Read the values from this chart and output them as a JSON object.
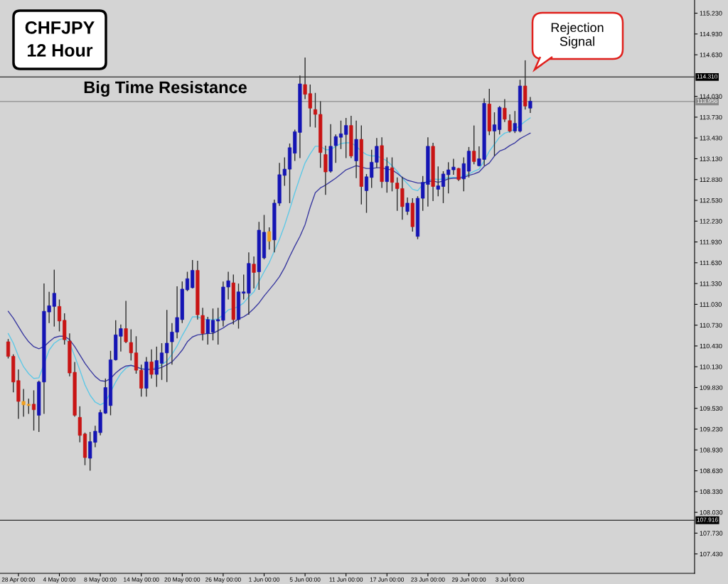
{
  "chart_data": {
    "type": "candlestick",
    "title": "CHFJPY",
    "subtitle": "12 Hour",
    "categories": [
      null,
      null,
      "28 Apr 00:00",
      null,
      null,
      null,
      null,
      null,
      null,
      null,
      "4 May 00:00",
      null,
      null,
      null,
      null,
      null,
      null,
      null,
      "8 May 00:00",
      null,
      null,
      null,
      null,
      null,
      null,
      null,
      "14 May 00:00",
      null,
      null,
      null,
      null,
      null,
      null,
      null,
      "20 May 00:00",
      null,
      null,
      null,
      null,
      null,
      null,
      null,
      "26 May 00:00",
      null,
      null,
      null,
      null,
      null,
      null,
      null,
      "1 Jun 00:00",
      null,
      null,
      null,
      null,
      null,
      null,
      null,
      "5 Jun 00:00",
      null,
      null,
      null,
      null,
      null,
      null,
      null,
      "11 Jun 00:00",
      null,
      null,
      null,
      null,
      null,
      null,
      null,
      "17 Jun 00:00",
      null,
      null,
      null,
      null,
      null,
      null,
      null,
      "23 Jun 00:00",
      null,
      null,
      null,
      null,
      null,
      null,
      null,
      "29 Jun 00:00",
      null,
      null,
      null,
      null,
      null,
      null,
      null,
      "3 Jul 00:00",
      null,
      null,
      null,
      null
    ],
    "ohlc": [
      [
        110.49,
        110.53,
        110.25,
        110.28
      ],
      [
        110.28,
        110.31,
        109.76,
        109.91
      ],
      [
        109.93,
        110.09,
        109.38,
        109.63
      ],
      [
        109.63,
        109.81,
        109.41,
        109.58
      ],
      [
        109.59,
        109.67,
        109.45,
        109.57
      ],
      [
        109.59,
        109.79,
        109.21,
        109.51
      ],
      [
        109.43,
        109.93,
        109.19,
        109.91
      ],
      [
        109.91,
        111.33,
        109.45,
        110.93
      ],
      [
        110.92,
        111.21,
        110.76,
        111.01
      ],
      [
        111.0,
        111.53,
        110.71,
        111.19
      ],
      [
        111.0,
        111.1,
        110.64,
        110.79
      ],
      [
        110.8,
        110.9,
        110.45,
        110.52
      ],
      [
        110.5,
        110.61,
        109.99,
        110.04
      ],
      [
        110.05,
        110.2,
        109.41,
        109.43
      ],
      [
        109.4,
        109.56,
        109.04,
        109.14
      ],
      [
        109.16,
        109.18,
        108.71,
        108.82
      ],
      [
        108.81,
        109.19,
        108.63,
        109.05
      ],
      [
        109.04,
        109.28,
        108.97,
        109.2
      ],
      [
        109.18,
        109.51,
        109.14,
        109.47
      ],
      [
        109.46,
        109.96,
        109.45,
        109.83
      ],
      [
        109.57,
        110.36,
        109.43,
        110.23
      ],
      [
        110.23,
        110.8,
        110.22,
        110.59
      ],
      [
        110.57,
        110.74,
        110.35,
        110.68
      ],
      [
        110.68,
        111.08,
        110.47,
        110.49
      ],
      [
        110.48,
        110.67,
        110.22,
        110.33
      ],
      [
        110.33,
        110.57,
        110.03,
        110.08
      ],
      [
        110.08,
        110.16,
        109.7,
        109.82
      ],
      [
        109.82,
        110.27,
        109.7,
        110.2
      ],
      [
        110.2,
        110.38,
        109.96,
        110.02
      ],
      [
        110.02,
        110.42,
        109.84,
        110.22
      ],
      [
        110.18,
        110.47,
        109.94,
        110.33
      ],
      [
        110.33,
        110.95,
        109.91,
        110.47
      ],
      [
        110.49,
        110.76,
        110.16,
        110.63
      ],
      [
        110.63,
        111.29,
        110.54,
        110.84
      ],
      [
        110.81,
        111.36,
        110.76,
        111.25
      ],
      [
        111.24,
        111.5,
        111.22,
        111.4
      ],
      [
        111.27,
        111.67,
        111.26,
        111.52
      ],
      [
        111.52,
        111.66,
        110.81,
        110.88
      ],
      [
        110.87,
        110.98,
        110.51,
        110.61
      ],
      [
        110.61,
        110.85,
        110.45,
        110.81
      ],
      [
        110.63,
        110.97,
        110.51,
        110.8
      ],
      [
        110.79,
        110.98,
        110.45,
        110.81
      ],
      [
        110.8,
        111.36,
        110.71,
        111.28
      ],
      [
        111.28,
        111.5,
        111.1,
        111.37
      ],
      [
        111.34,
        111.46,
        110.74,
        110.81
      ],
      [
        110.81,
        111.33,
        110.68,
        111.21
      ],
      [
        111.19,
        111.46,
        111.1,
        111.21
      ],
      [
        111.19,
        111.78,
        110.88,
        111.62
      ],
      [
        111.61,
        111.72,
        111.26,
        111.49
      ],
      [
        111.5,
        112.22,
        111.24,
        112.1
      ],
      [
        111.7,
        112.32,
        111.68,
        112.07
      ],
      [
        112.08,
        112.14,
        111.82,
        111.94
      ],
      [
        111.96,
        112.54,
        111.78,
        112.49
      ],
      [
        112.49,
        113.07,
        112.45,
        112.9
      ],
      [
        112.89,
        113.15,
        112.74,
        112.98
      ],
      [
        112.98,
        113.35,
        112.49,
        113.29
      ],
      [
        113.21,
        113.55,
        113.1,
        113.52
      ],
      [
        113.51,
        114.33,
        113.14,
        114.21
      ],
      [
        114.2,
        114.59,
        113.99,
        114.06
      ],
      [
        114.07,
        114.2,
        113.59,
        113.86
      ],
      [
        113.84,
        114.08,
        113.58,
        113.77
      ],
      [
        113.77,
        113.96,
        113.0,
        113.22
      ],
      [
        113.19,
        113.32,
        112.61,
        112.94
      ],
      [
        112.95,
        113.63,
        112.93,
        113.31
      ],
      [
        113.32,
        113.48,
        113.07,
        113.45
      ],
      [
        113.44,
        113.68,
        113.27,
        113.49
      ],
      [
        113.48,
        113.72,
        113.14,
        113.61
      ],
      [
        113.61,
        113.75,
        113.14,
        113.17
      ],
      [
        113.1,
        113.68,
        112.85,
        113.41
      ],
      [
        113.41,
        113.61,
        112.47,
        112.73
      ],
      [
        112.67,
        112.91,
        112.35,
        112.87
      ],
      [
        112.86,
        113.26,
        112.71,
        113.08
      ],
      [
        113.08,
        113.43,
        113.0,
        113.31
      ],
      [
        113.32,
        113.44,
        112.71,
        112.8
      ],
      [
        112.8,
        113.15,
        112.64,
        113.02
      ],
      [
        113.0,
        113.15,
        112.66,
        112.79
      ],
      [
        112.78,
        112.86,
        112.38,
        112.7
      ],
      [
        112.7,
        112.87,
        112.25,
        112.44
      ],
      [
        112.37,
        112.57,
        112.32,
        112.49
      ],
      [
        112.49,
        112.56,
        112.08,
        112.15
      ],
      [
        112.01,
        112.59,
        111.97,
        112.56
      ],
      [
        112.56,
        112.88,
        112.38,
        112.79
      ],
      [
        112.76,
        113.44,
        112.44,
        113.31
      ],
      [
        113.31,
        113.36,
        112.52,
        112.73
      ],
      [
        112.69,
        113.02,
        112.59,
        112.74
      ],
      [
        112.73,
        112.95,
        112.49,
        112.91
      ],
      [
        112.9,
        113.08,
        112.63,
        112.97
      ],
      [
        112.97,
        113.13,
        112.9,
        113.01
      ],
      [
        112.99,
        113.0,
        112.81,
        112.83
      ],
      [
        112.84,
        113.15,
        112.66,
        113.06
      ],
      [
        112.95,
        113.3,
        112.86,
        113.24
      ],
      [
        113.24,
        113.61,
        113.05,
        113.09
      ],
      [
        113.03,
        113.31,
        113.02,
        113.13
      ],
      [
        113.12,
        114.0,
        113.03,
        113.93
      ],
      [
        113.92,
        114.14,
        113.47,
        113.53
      ],
      [
        113.53,
        113.8,
        113.17,
        113.62
      ],
      [
        113.55,
        113.89,
        113.48,
        113.87
      ],
      [
        113.86,
        113.99,
        113.66,
        113.7
      ],
      [
        113.68,
        113.77,
        113.51,
        113.53
      ],
      [
        113.53,
        113.82,
        113.5,
        113.64
      ],
      [
        113.53,
        114.27,
        113.51,
        114.18
      ],
      [
        114.18,
        114.55,
        113.84,
        113.89
      ],
      [
        113.86,
        114.02,
        113.79,
        113.96
      ]
    ],
    "colors": [
      "#c81414",
      "#c81414",
      "#c81414",
      "#f0a020",
      "#f0a020",
      "#c81414",
      "#1414b4",
      "#1414b4",
      "#1414b4",
      "#1414b4",
      "#c81414",
      "#c81414",
      "#c81414",
      "#c81414",
      "#c81414",
      "#c81414",
      "#1414b4",
      "#1414b4",
      "#1414b4",
      "#1414b4",
      "#1414b4",
      "#1414b4",
      "#1414b4",
      "#c81414",
      "#c81414",
      "#c81414",
      "#c81414",
      "#1414b4",
      "#c81414",
      "#1414b4",
      "#1414b4",
      "#1414b4",
      "#1414b4",
      "#1414b4",
      "#1414b4",
      "#1414b4",
      "#1414b4",
      "#c81414",
      "#c81414",
      "#1414b4",
      "#1414b4",
      "#1414b4",
      "#1414b4",
      "#1414b4",
      "#c81414",
      "#1414b4",
      "#1414b4",
      "#1414b4",
      "#c81414",
      "#1414b4",
      "#1414b4",
      "#f0a020",
      "#1414b4",
      "#1414b4",
      "#1414b4",
      "#1414b4",
      "#1414b4",
      "#1414b4",
      "#c81414",
      "#c81414",
      "#c81414",
      "#c81414",
      "#c81414",
      "#1414b4",
      "#1414b4",
      "#1414b4",
      "#1414b4",
      "#c81414",
      "#1414b4",
      "#c81414",
      "#1414b4",
      "#1414b4",
      "#1414b4",
      "#c81414",
      "#1414b4",
      "#c81414",
      "#c81414",
      "#c81414",
      "#1414b4",
      "#c81414",
      "#1414b4",
      "#1414b4",
      "#1414b4",
      "#c81414",
      "#1414b4",
      "#1414b4",
      "#1414b4",
      "#1414b4",
      "#c81414",
      "#1414b4",
      "#1414b4",
      "#c81414",
      "#1414b4",
      "#1414b4",
      "#c81414",
      "#1414b4",
      "#1414b4",
      "#c81414",
      "#c81414",
      "#1414b4",
      "#1414b4",
      "#c81414",
      "#1414b4"
    ],
    "series": [
      {
        "type": "line",
        "color": "#5ec8e6",
        "values": [
          110.61,
          110.47,
          110.28,
          110.13,
          110.03,
          109.96,
          109.97,
          null,
          110.37,
          110.47,
          110.52,
          110.54,
          110.47,
          110.28,
          110.08,
          109.87,
          109.72,
          109.62,
          109.58,
          109.62,
          null,
          109.91,
          110.03,
          110.11,
          110.15,
          null,
          110.1,
          null,
          110.1,
          110.12,
          110.16,
          110.21,
          110.31,
          110.43,
          110.58,
          110.71,
          110.85,
          110.85,
          110.82,
          110.81,
          110.81,
          110.82,
          110.88,
          110.95,
          110.97,
          111.0,
          111.05,
          111.14,
          111.21,
          111.36,
          111.5,
          111.63,
          111.8,
          111.97,
          112.17,
          112.4,
          112.64,
          112.86,
          113.07,
          113.2,
          113.31,
          113.31,
          113.26,
          113.26,
          113.31,
          113.35,
          113.36,
          113.36,
          113.31,
          113.24,
          113.19,
          113.17,
          113.17,
          113.14,
          113.1,
          113.03,
          112.95,
          112.85,
          112.77,
          112.69,
          112.67,
          112.76,
          112.81,
          112.84,
          112.83,
          112.84,
          112.86,
          112.86,
          112.86,
          112.88,
          112.91,
          112.95,
          112.98,
          113.1,
          113.24,
          113.34,
          113.44,
          113.5,
          113.52,
          113.56,
          113.61,
          113.67,
          113.72
        ]
      },
      {
        "type": "line",
        "color": "#3a3aa0",
        "values": [
          110.93,
          110.83,
          110.71,
          110.59,
          110.49,
          110.42,
          110.39,
          110.42,
          110.49,
          110.55,
          110.57,
          110.57,
          110.52,
          110.42,
          110.3,
          110.18,
          110.08,
          109.99,
          109.93,
          109.92,
          109.96,
          110.04,
          110.1,
          110.14,
          110.15,
          110.13,
          110.1,
          110.09,
          110.09,
          110.1,
          110.12,
          110.16,
          110.2,
          110.28,
          110.37,
          110.49,
          110.56,
          110.59,
          110.6,
          110.61,
          110.61,
          110.65,
          110.69,
          110.74,
          110.77,
          110.82,
          110.85,
          110.9,
          110.97,
          111.05,
          111.15,
          111.24,
          111.33,
          111.43,
          111.56,
          111.72,
          111.87,
          112.01,
          112.18,
          112.43,
          112.64,
          112.71,
          112.75,
          112.8,
          112.85,
          112.91,
          112.97,
          113.0,
          113.03,
          113.01,
          112.99,
          112.99,
          113.0,
          113.0,
          112.98,
          112.97,
          112.92,
          112.86,
          112.82,
          112.8,
          112.78,
          112.78,
          112.8,
          112.81,
          112.79,
          112.81,
          112.84,
          112.85,
          112.85,
          112.86,
          112.89,
          112.91,
          112.94,
          113.02,
          113.07,
          113.17,
          113.24,
          113.27,
          113.32,
          113.36,
          113.42,
          113.46,
          113.5
        ]
      }
    ],
    "ylim": [
      107.15,
      115.42
    ],
    "yticks": [
      {
        "value": 115.23,
        "label": "115.230"
      },
      {
        "value": 114.93,
        "label": "114.930"
      },
      {
        "value": 114.63,
        "label": "114.630"
      },
      {
        "value": 114.03,
        "label": "114.030"
      },
      {
        "value": 113.73,
        "label": "113.730"
      },
      {
        "value": 113.43,
        "label": "113.430"
      },
      {
        "value": 113.13,
        "label": "113.130"
      },
      {
        "value": 112.83,
        "label": "112.830"
      },
      {
        "value": 112.53,
        "label": "112.530"
      },
      {
        "value": 112.23,
        "label": "112.230"
      },
      {
        "value": 111.93,
        "label": "111.930"
      },
      {
        "value": 111.63,
        "label": "111.630"
      },
      {
        "value": 111.33,
        "label": "111.330"
      },
      {
        "value": 111.03,
        "label": "111.030"
      },
      {
        "value": 110.73,
        "label": "110.730"
      },
      {
        "value": 110.43,
        "label": "110.430"
      },
      {
        "value": 110.13,
        "label": "110.130"
      },
      {
        "value": 109.83,
        "label": "109.830"
      },
      {
        "value": 109.53,
        "label": "109.530"
      },
      {
        "value": 109.23,
        "label": "109.230"
      },
      {
        "value": 108.93,
        "label": "108.930"
      },
      {
        "value": 108.63,
        "label": "108.630"
      },
      {
        "value": 108.33,
        "label": "108.330"
      },
      {
        "value": 108.03,
        "label": "108.030"
      },
      {
        "value": 107.73,
        "label": "107.730"
      },
      {
        "value": 107.43,
        "label": "107.430"
      }
    ],
    "ref_lines": [
      {
        "axis": "y",
        "value": 114.31,
        "label": "114.310",
        "color": "#000000"
      },
      {
        "axis": "y",
        "value": 113.956,
        "label": "113.956",
        "color": "#8c8c8c"
      },
      {
        "axis": "y",
        "value": 107.916,
        "label": "107.916",
        "color": "#000000"
      }
    ],
    "annotations": [
      {
        "text": "Big Time Resistance",
        "y": 114.31
      },
      "Rejection\nSignal"
    ]
  }
}
